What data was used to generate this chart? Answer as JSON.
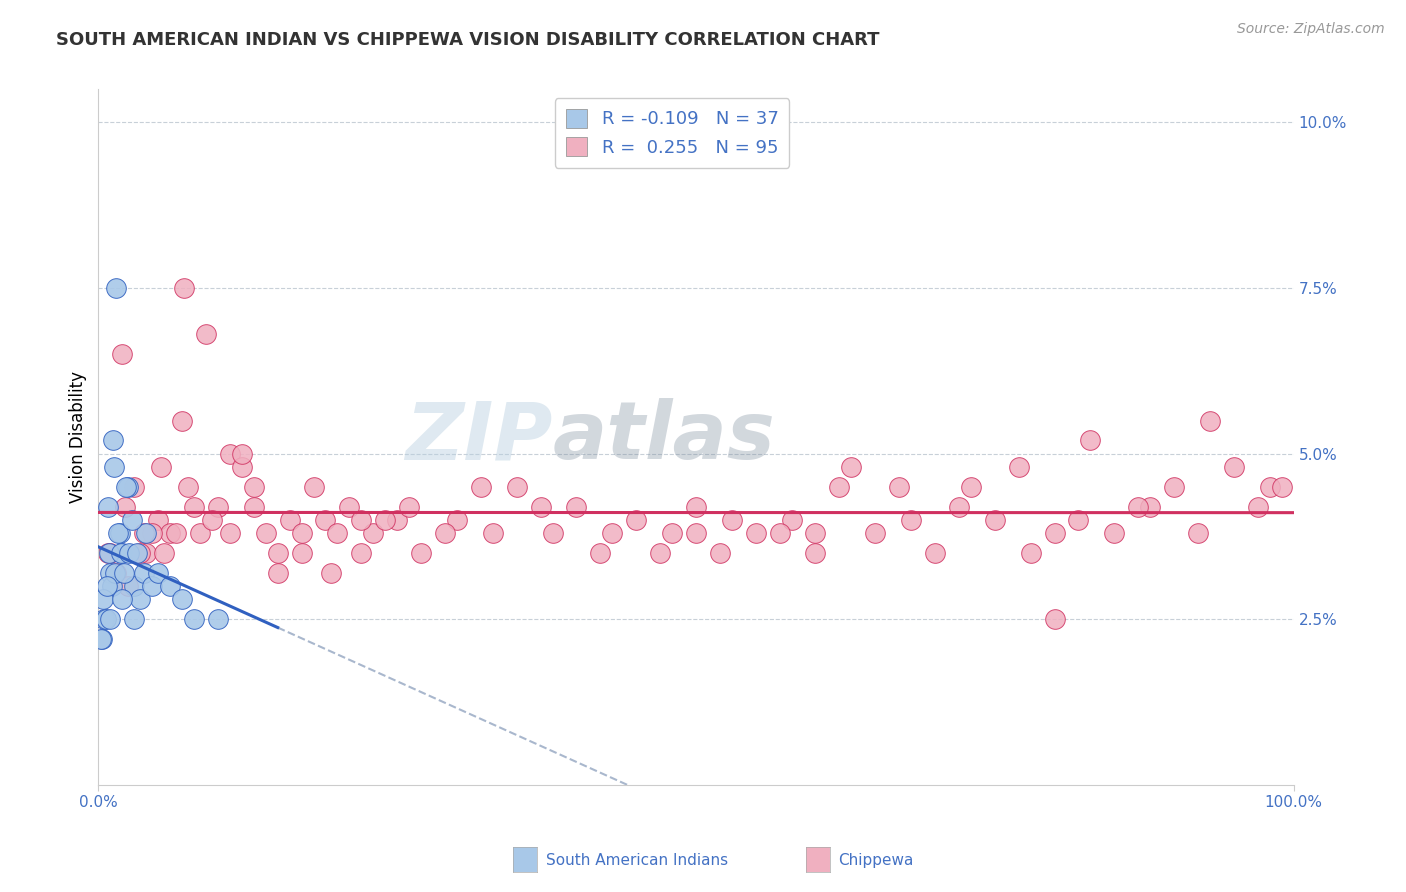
{
  "title": "SOUTH AMERICAN INDIAN VS CHIPPEWA VISION DISABILITY CORRELATION CHART",
  "source": "Source: ZipAtlas.com",
  "ylabel": "Vision Disability",
  "watermark_zip": "ZIP",
  "watermark_atlas": "atlas",
  "blue_color": "#a8c8e8",
  "pink_color": "#f0b0c0",
  "blue_line_color": "#3060c0",
  "pink_line_color": "#d03060",
  "dashed_line_color": "#a0b0c8",
  "background_color": "#ffffff",
  "grid_color": "#c8d0d8",
  "blue_scatter_x": [
    1.0,
    1.5,
    2.0,
    2.5,
    3.0,
    3.5,
    4.0,
    1.2,
    1.8,
    0.5,
    0.8,
    1.3,
    0.3,
    0.6,
    0.9,
    1.1,
    1.4,
    1.6,
    1.9,
    2.1,
    2.3,
    2.6,
    2.8,
    3.2,
    3.8,
    4.5,
    5.0,
    6.0,
    7.0,
    8.0,
    10.0,
    0.2,
    0.4,
    0.7,
    1.0,
    2.0,
    3.0
  ],
  "blue_scatter_y": [
    3.2,
    7.5,
    3.5,
    4.5,
    3.0,
    2.8,
    3.8,
    5.2,
    3.8,
    2.5,
    4.2,
    4.8,
    2.2,
    2.5,
    3.5,
    3.0,
    3.2,
    3.8,
    3.5,
    3.2,
    4.5,
    3.5,
    4.0,
    3.5,
    3.2,
    3.0,
    3.2,
    3.0,
    2.8,
    2.5,
    2.5,
    2.2,
    2.8,
    3.0,
    2.5,
    2.8,
    2.5
  ],
  "pink_scatter_x": [
    1.0,
    2.0,
    3.0,
    4.0,
    5.0,
    6.0,
    7.0,
    8.0,
    9.0,
    10.0,
    11.0,
    12.0,
    13.0,
    14.0,
    15.0,
    16.0,
    17.0,
    18.0,
    19.0,
    20.0,
    21.0,
    22.0,
    23.0,
    25.0,
    27.0,
    30.0,
    33.0,
    35.0,
    38.0,
    40.0,
    42.0,
    45.0,
    48.0,
    50.0,
    52.0,
    55.0,
    58.0,
    60.0,
    62.0,
    65.0,
    68.0,
    70.0,
    72.0,
    75.0,
    78.0,
    80.0,
    82.0,
    85.0,
    88.0,
    90.0,
    92.0,
    95.0,
    97.0,
    98.0,
    1.5,
    2.5,
    3.5,
    4.5,
    5.5,
    6.5,
    7.5,
    8.5,
    9.5,
    11.0,
    13.0,
    15.0,
    17.0,
    19.5,
    22.0,
    26.0,
    29.0,
    32.0,
    37.0,
    43.0,
    47.0,
    53.0,
    57.0,
    63.0,
    67.0,
    73.0,
    77.0,
    83.0,
    87.0,
    93.0,
    0.8,
    2.2,
    3.8,
    5.2,
    7.2,
    12.0,
    24.0,
    60.0,
    80.0,
    99.0,
    50.0
  ],
  "pink_scatter_y": [
    3.5,
    6.5,
    4.5,
    3.5,
    4.0,
    3.8,
    5.5,
    4.2,
    6.8,
    4.2,
    5.0,
    4.8,
    4.5,
    3.8,
    3.5,
    4.0,
    3.8,
    4.5,
    4.0,
    3.8,
    4.2,
    3.5,
    3.8,
    4.0,
    3.5,
    4.0,
    3.8,
    4.5,
    3.8,
    4.2,
    3.5,
    4.0,
    3.8,
    4.2,
    3.5,
    3.8,
    4.0,
    3.8,
    4.5,
    3.8,
    4.0,
    3.5,
    4.2,
    4.0,
    3.5,
    3.8,
    4.0,
    3.8,
    4.2,
    4.5,
    3.8,
    4.8,
    4.2,
    4.5,
    3.2,
    3.0,
    3.5,
    3.8,
    3.5,
    3.8,
    4.5,
    3.8,
    4.0,
    3.8,
    4.2,
    3.2,
    3.5,
    3.2,
    4.0,
    4.2,
    3.8,
    4.5,
    4.2,
    3.8,
    3.5,
    4.0,
    3.8,
    4.8,
    4.5,
    4.5,
    4.8,
    5.2,
    4.2,
    5.5,
    3.5,
    4.2,
    3.8,
    4.8,
    7.5,
    5.0,
    4.0,
    3.5,
    2.5,
    4.5,
    3.8
  ],
  "xlim": [
    0,
    100
  ],
  "ylim": [
    0,
    10.5
  ],
  "yticks": [
    0,
    2.5,
    5.0,
    7.5,
    10.0
  ],
  "ytick_labels": [
    "",
    "2.5%",
    "5.0%",
    "7.5%",
    "10.0%"
  ],
  "title_fontsize": 13,
  "axis_label_fontsize": 12,
  "tick_fontsize": 11,
  "source_fontsize": 10,
  "blue_r": "-0.109",
  "blue_n": "37",
  "pink_r": "0.255",
  "pink_n": "95"
}
